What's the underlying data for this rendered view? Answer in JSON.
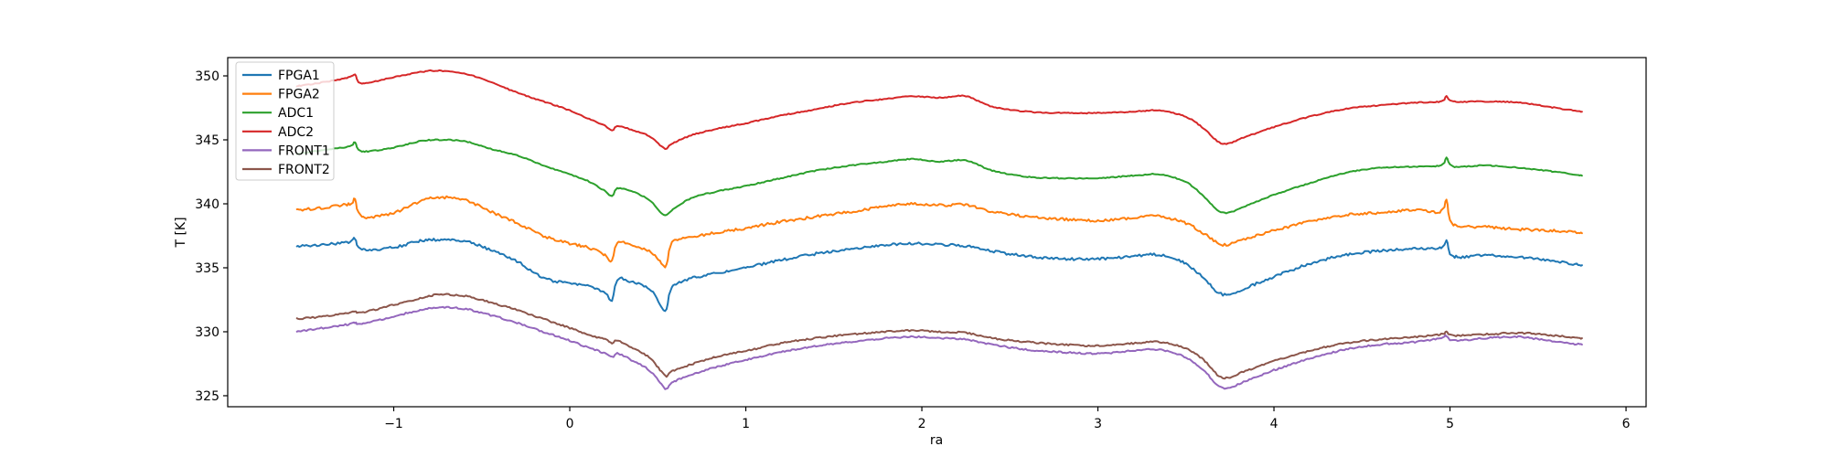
{
  "chart_data": {
    "type": "line",
    "title": "",
    "xlabel": "ra",
    "ylabel": "T [K]",
    "xlim": [
      -1.943,
      6.114
    ],
    "ylim": [
      324.14,
      351.43
    ],
    "grid": false,
    "legend_position": "upper left",
    "x_ticks": [
      {
        "v": -1,
        "label": "−1"
      },
      {
        "v": 0,
        "label": "0"
      },
      {
        "v": 1,
        "label": "1"
      },
      {
        "v": 2,
        "label": "2"
      },
      {
        "v": 3,
        "label": "3"
      },
      {
        "v": 4,
        "label": "4"
      },
      {
        "v": 5,
        "label": "5"
      },
      {
        "v": 6,
        "label": "6"
      }
    ],
    "y_ticks": [
      {
        "v": 325,
        "label": "325"
      },
      {
        "v": 330,
        "label": "330"
      },
      {
        "v": 335,
        "label": "335"
      },
      {
        "v": 340,
        "label": "340"
      },
      {
        "v": 345,
        "label": "345"
      },
      {
        "v": 350,
        "label": "350"
      }
    ],
    "x": [
      -1.55,
      -1.4,
      -1.25,
      -1.22,
      -1.18,
      -1.0,
      -0.85,
      -0.75,
      -0.6,
      -0.45,
      -0.3,
      -0.15,
      0.0,
      0.1,
      0.2,
      0.24,
      0.27,
      0.35,
      0.45,
      0.52,
      0.55,
      0.58,
      0.7,
      0.85,
      1.0,
      1.2,
      1.4,
      1.6,
      1.8,
      1.95,
      2.1,
      2.25,
      2.4,
      2.6,
      2.8,
      3.0,
      3.2,
      3.35,
      3.5,
      3.6,
      3.71,
      3.85,
      4.0,
      4.2,
      4.4,
      4.6,
      4.8,
      4.95,
      4.98,
      5.02,
      5.2,
      5.4,
      5.6,
      5.75
    ],
    "series": [
      {
        "name": "FPGA1",
        "color": "#1f77b4",
        "noise_k": 0.1,
        "values": [
          336.7,
          336.8,
          337.0,
          337.3,
          336.4,
          336.6,
          337.1,
          337.2,
          337.1,
          336.4,
          335.5,
          334.2,
          333.8,
          333.6,
          333.0,
          332.4,
          334.1,
          333.9,
          333.4,
          332.0,
          331.8,
          333.5,
          334.2,
          334.6,
          335.0,
          335.6,
          336.1,
          336.5,
          336.8,
          336.9,
          336.8,
          336.7,
          336.3,
          335.9,
          335.7,
          335.7,
          335.9,
          336.0,
          335.3,
          334.2,
          332.9,
          333.5,
          334.3,
          335.3,
          336.0,
          336.3,
          336.5,
          336.6,
          337.1,
          335.9,
          336.0,
          335.8,
          335.5,
          335.2
        ]
      },
      {
        "name": "FPGA2",
        "color": "#ff7f0e",
        "noise_k": 0.1,
        "values": [
          339.5,
          339.7,
          340.0,
          340.4,
          339.0,
          339.3,
          340.2,
          340.5,
          340.3,
          339.4,
          338.5,
          337.5,
          336.9,
          336.6,
          336.0,
          335.5,
          337.0,
          336.8,
          336.3,
          335.4,
          335.2,
          337.0,
          337.4,
          337.8,
          338.1,
          338.6,
          339.0,
          339.4,
          339.8,
          340.0,
          339.9,
          339.9,
          339.4,
          339.0,
          338.8,
          338.7,
          338.9,
          339.0,
          338.5,
          337.7,
          336.8,
          337.3,
          337.9,
          338.6,
          339.1,
          339.3,
          339.5,
          339.4,
          340.3,
          338.4,
          338.2,
          338.0,
          337.9,
          337.7
        ]
      },
      {
        "name": "ADC1",
        "color": "#2ca02c",
        "noise_k": 0.04,
        "values": [
          343.9,
          344.2,
          344.5,
          344.8,
          344.1,
          344.4,
          344.9,
          345.0,
          344.9,
          344.3,
          343.8,
          343.0,
          342.3,
          341.8,
          341.0,
          340.6,
          341.2,
          341.0,
          340.3,
          339.3,
          339.1,
          339.5,
          340.5,
          341.0,
          341.4,
          342.0,
          342.6,
          343.0,
          343.3,
          343.5,
          343.3,
          343.4,
          342.6,
          342.1,
          342.0,
          342.0,
          342.2,
          342.3,
          341.7,
          340.6,
          339.3,
          339.9,
          340.7,
          341.6,
          342.4,
          342.8,
          342.9,
          343.0,
          343.6,
          342.9,
          343.0,
          342.8,
          342.5,
          342.2
        ]
      },
      {
        "name": "ADC2",
        "color": "#d62728",
        "noise_k": 0.04,
        "values": [
          349.2,
          349.5,
          349.9,
          350.1,
          349.4,
          349.9,
          350.3,
          350.4,
          350.2,
          349.5,
          348.7,
          348.0,
          347.3,
          346.7,
          346.1,
          345.7,
          346.1,
          345.8,
          345.3,
          344.5,
          344.3,
          344.7,
          345.4,
          345.9,
          346.3,
          346.9,
          347.4,
          347.9,
          348.2,
          348.4,
          348.3,
          348.4,
          347.6,
          347.2,
          347.1,
          347.1,
          347.2,
          347.3,
          346.8,
          345.9,
          344.7,
          345.3,
          346.0,
          346.8,
          347.4,
          347.7,
          347.9,
          348.0,
          348.4,
          348.0,
          348.0,
          347.9,
          347.5,
          347.2
        ]
      },
      {
        "name": "FRONT1",
        "color": "#9467bd",
        "noise_k": 0.06,
        "values": [
          330.0,
          330.3,
          330.6,
          330.7,
          330.6,
          331.2,
          331.7,
          331.9,
          331.8,
          331.3,
          330.7,
          330.0,
          329.3,
          328.8,
          328.3,
          328.0,
          328.3,
          327.8,
          327.0,
          325.9,
          325.5,
          326.0,
          326.7,
          327.3,
          327.8,
          328.4,
          328.9,
          329.2,
          329.5,
          329.6,
          329.5,
          329.4,
          329.0,
          328.6,
          328.4,
          328.3,
          328.5,
          328.6,
          328.0,
          327.0,
          325.6,
          326.2,
          327.0,
          327.9,
          328.6,
          329.0,
          329.2,
          329.5,
          329.7,
          329.3,
          329.5,
          329.6,
          329.2,
          329.0
        ]
      },
      {
        "name": "FRONT2",
        "color": "#8c564b",
        "noise_k": 0.06,
        "values": [
          331.0,
          331.2,
          331.5,
          331.6,
          331.5,
          332.1,
          332.6,
          332.9,
          332.8,
          332.3,
          331.7,
          331.0,
          330.3,
          329.8,
          329.4,
          329.1,
          329.3,
          328.8,
          328.0,
          326.9,
          326.5,
          326.9,
          327.5,
          328.1,
          328.5,
          329.1,
          329.5,
          329.8,
          330.0,
          330.1,
          330.0,
          329.9,
          329.5,
          329.2,
          329.0,
          328.9,
          329.1,
          329.2,
          328.7,
          327.8,
          326.4,
          327.0,
          327.7,
          328.5,
          329.1,
          329.4,
          329.6,
          329.8,
          330.0,
          329.7,
          329.8,
          329.9,
          329.7,
          329.5
        ]
      }
    ]
  }
}
